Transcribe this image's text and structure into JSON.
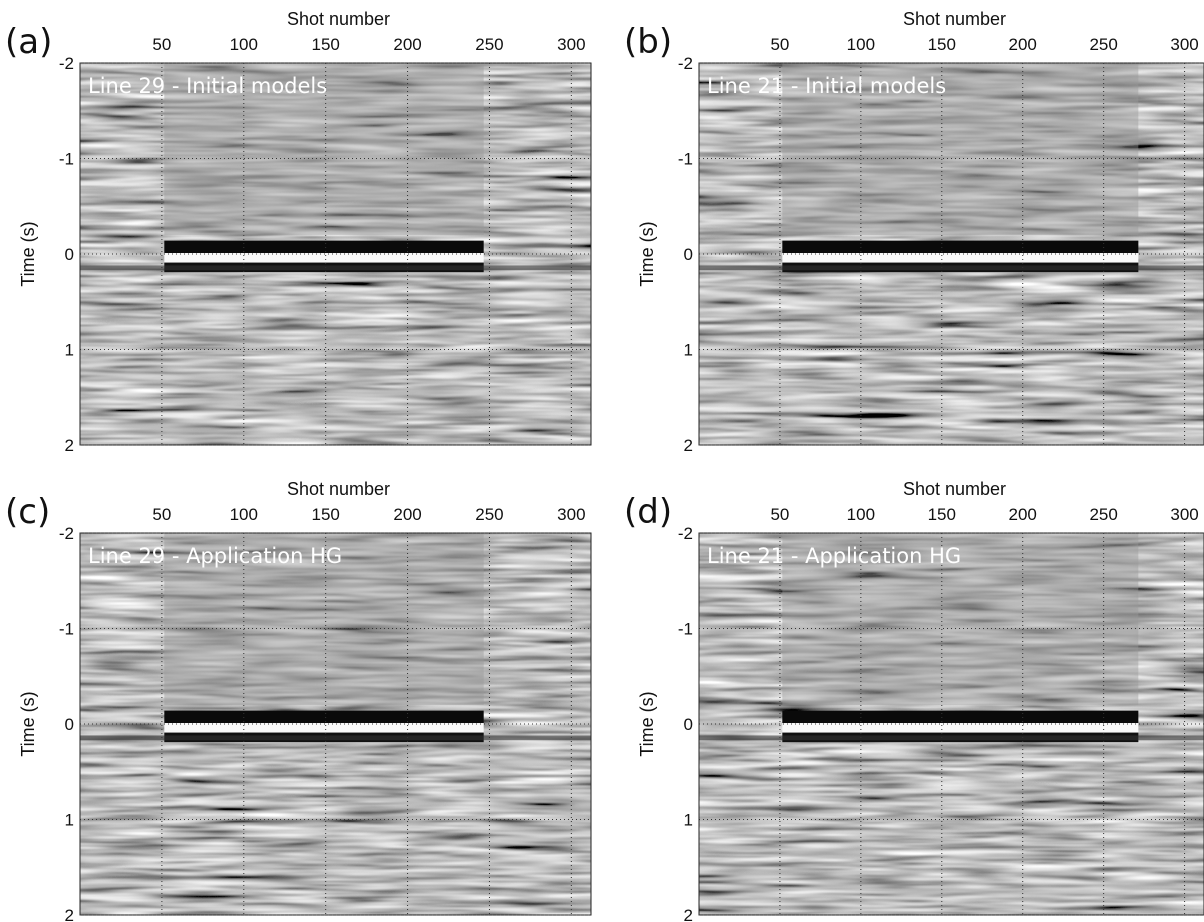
{
  "chart_data": [
    {
      "type": "image",
      "panel_label": "(a)",
      "annotation": "Line 29 - Initial models",
      "xlabel": "Shot number",
      "ylabel": "Time (s)",
      "xlim": [
        0,
        312
      ],
      "xticks": [
        50,
        100,
        150,
        200,
        250,
        300
      ],
      "ylim": [
        -2,
        2
      ],
      "yticks": [
        -2,
        -1,
        0,
        1,
        2
      ],
      "grid": true
    },
    {
      "type": "image",
      "panel_label": "(b)",
      "annotation": "Line 21 - Initial models",
      "xlabel": "Shot number",
      "ylabel": "Time (s)",
      "xlim": [
        0,
        312
      ],
      "xticks": [
        50,
        100,
        150,
        200,
        250,
        300
      ],
      "ylim": [
        -2,
        2
      ],
      "yticks": [
        -2,
        -1,
        0,
        1,
        2
      ],
      "grid": true
    },
    {
      "type": "image",
      "panel_label": "(c)",
      "annotation": "Line 29 - Application HG",
      "xlabel": "Shot number",
      "ylabel": "Time (s)",
      "xlim": [
        0,
        312
      ],
      "xticks": [
        50,
        100,
        150,
        200,
        250,
        300
      ],
      "ylim": [
        -2,
        2
      ],
      "yticks": [
        -2,
        -1,
        0,
        1,
        2
      ],
      "grid": true
    },
    {
      "type": "image",
      "panel_label": "(d)",
      "annotation": "Line 21 - Application HG",
      "xlabel": "Shot number",
      "ylabel": "Time (s)",
      "xlim": [
        0,
        312
      ],
      "xticks": [
        50,
        100,
        150,
        200,
        250,
        300
      ],
      "ylim": [
        -2,
        2
      ],
      "yticks": [
        -2,
        -1,
        0,
        1,
        2
      ],
      "grid": true
    }
  ]
}
